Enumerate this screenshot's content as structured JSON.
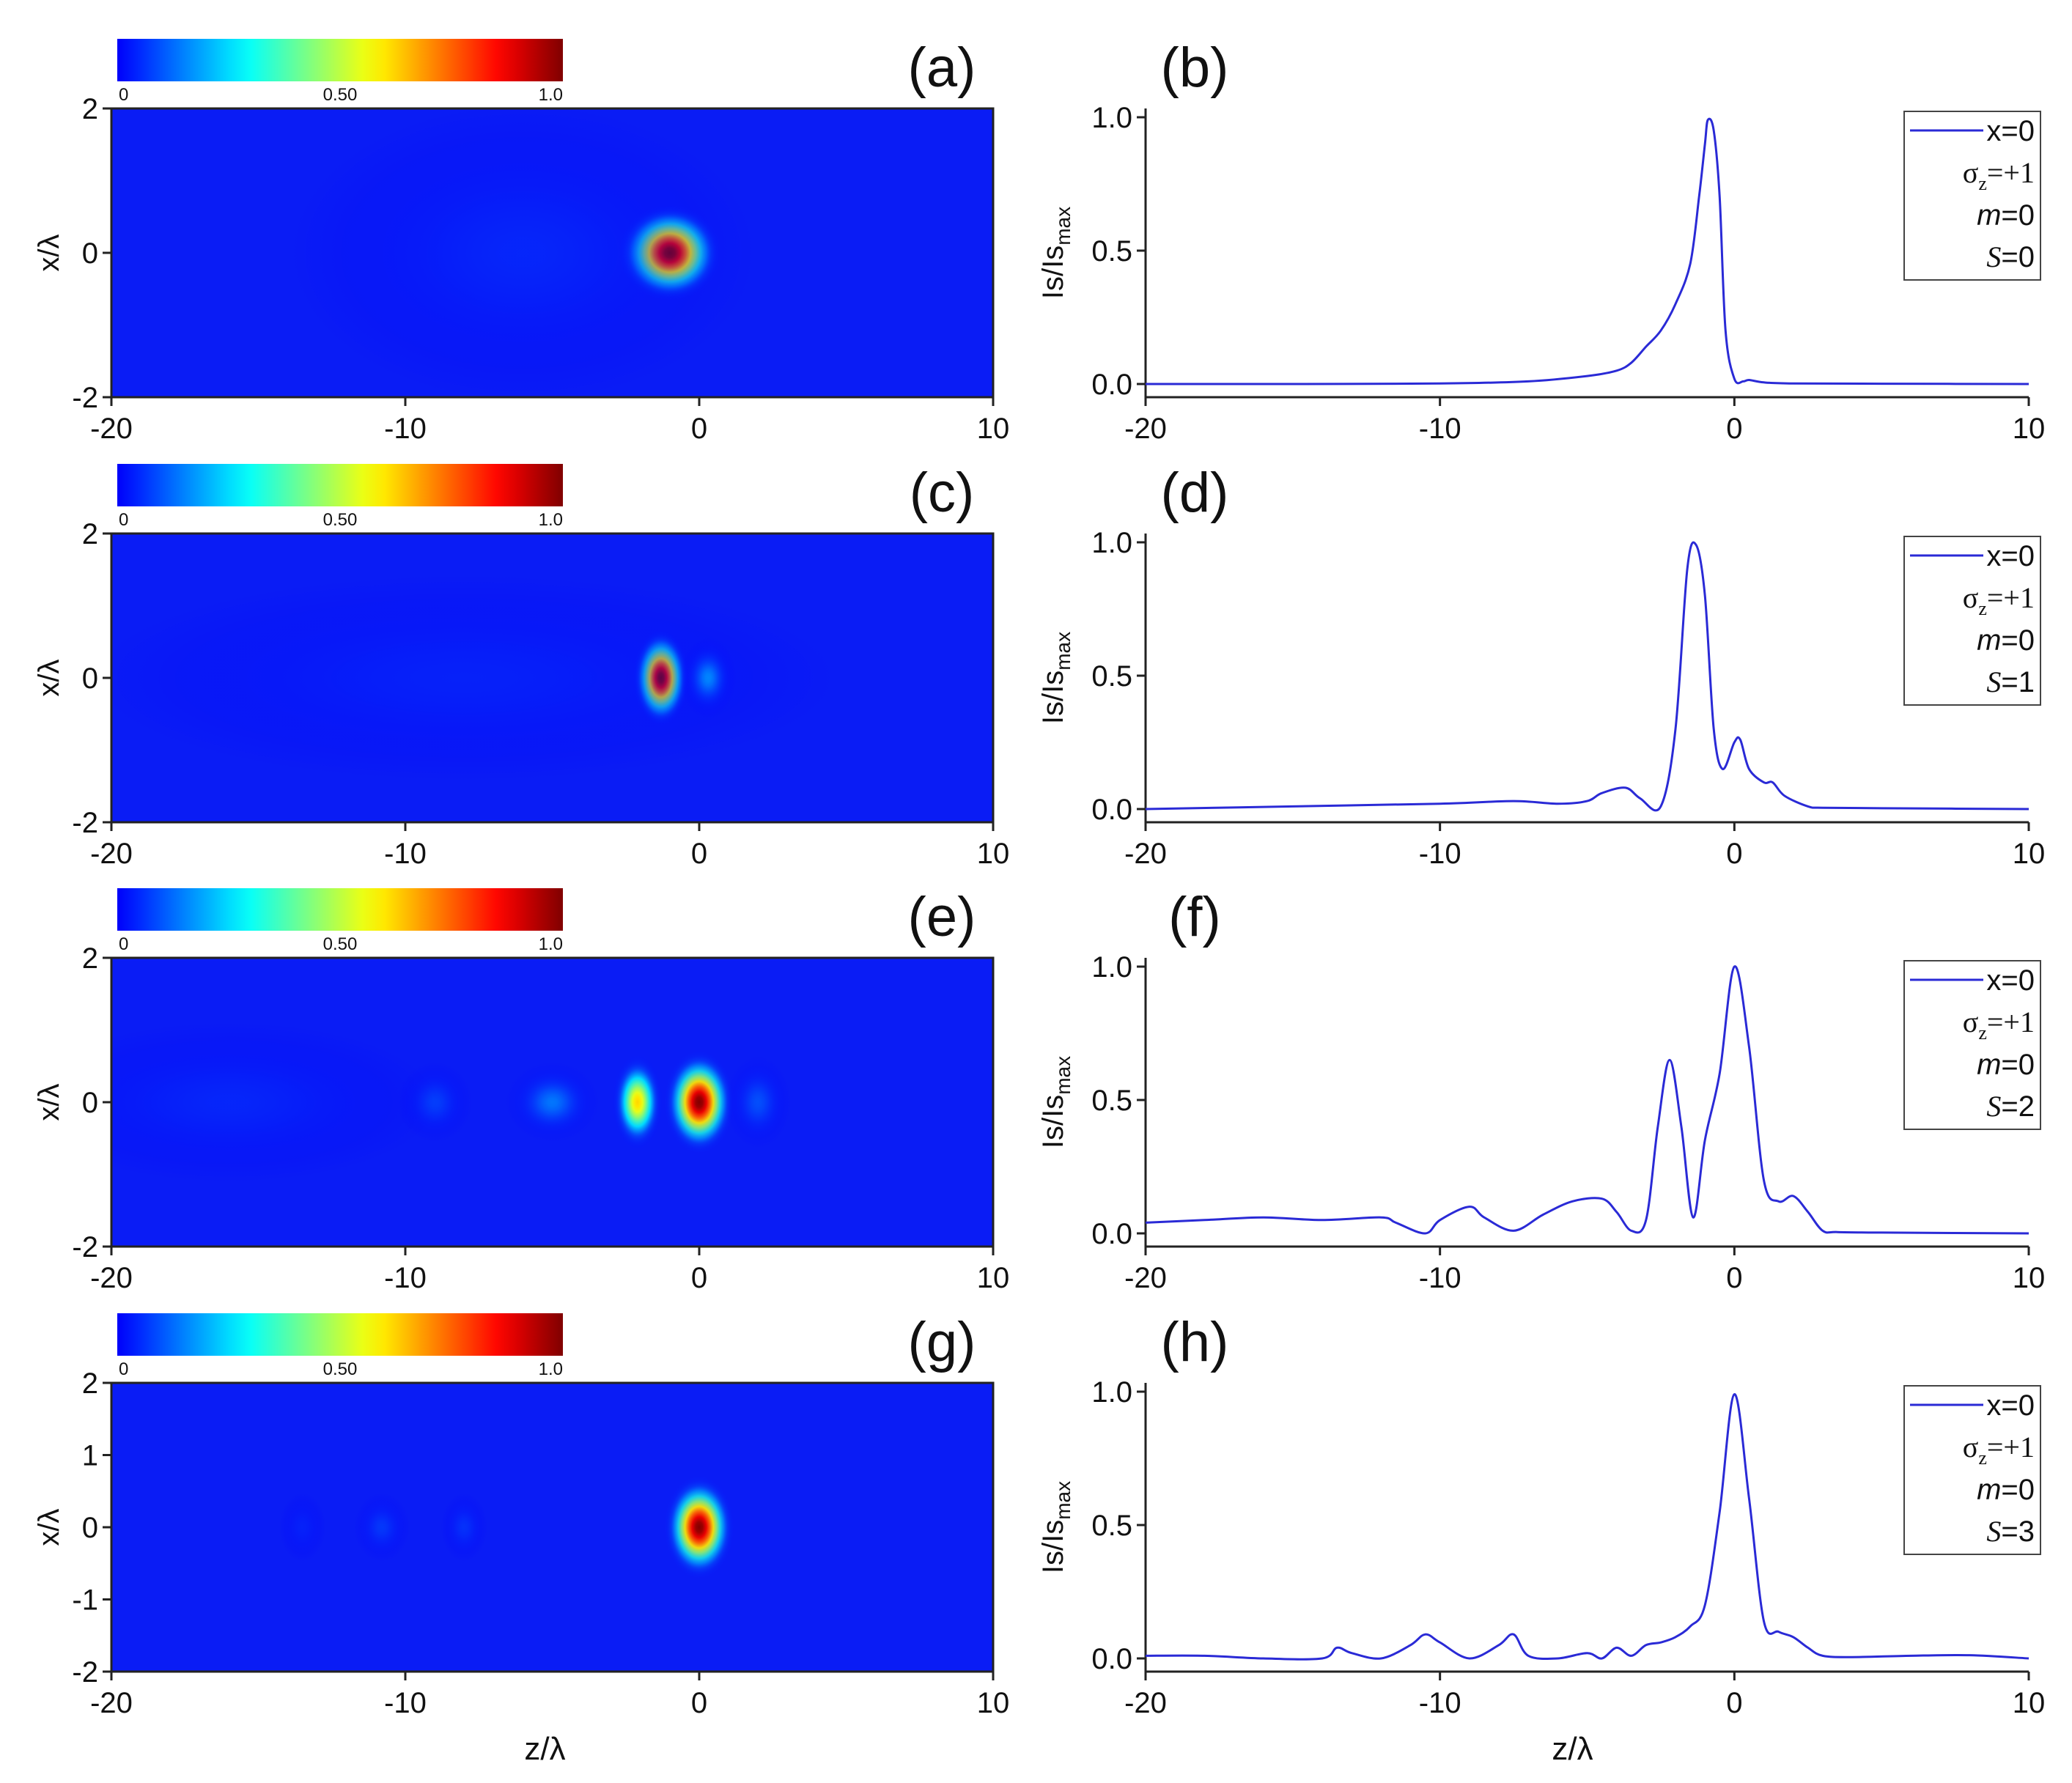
{
  "chart_data": [
    {
      "type": "heatmap",
      "panel_label": "(a)",
      "colorbar": {
        "min_label": "0",
        "mid_label": "0.50",
        "max_label": "1.0",
        "range": [
          0,
          1
        ]
      },
      "xlim": [
        -20,
        10
      ],
      "ylim": [
        -2,
        2
      ],
      "xticks": [
        "-20",
        "-10",
        "0",
        "10"
      ],
      "yticks": [
        "2",
        "0",
        "-2"
      ],
      "ylabel": "x/λ",
      "xlabel": "",
      "spots": [
        {
          "z": -1.0,
          "x": 0,
          "wz": 1.1,
          "wx": 0.42,
          "peak": 1.0
        },
        {
          "z": -6.0,
          "x": 0,
          "wz": 5.0,
          "wx": 1.3,
          "peak": 0.06
        }
      ]
    },
    {
      "type": "line",
      "panel_label": "(b)",
      "series": [
        {
          "name": "x=0",
          "x": [
            -20,
            -15,
            -10,
            -7,
            -5,
            -4,
            -3.5,
            -3,
            -2.5,
            -2,
            -1.5,
            -1.2,
            -1,
            -0.9,
            -0.7,
            -0.5,
            -0.3,
            0,
            0.3,
            0.5,
            1,
            2,
            5,
            10
          ],
          "y": [
            0,
            0,
            0.002,
            0.01,
            0.03,
            0.05,
            0.08,
            0.14,
            0.2,
            0.3,
            0.45,
            0.7,
            0.9,
            0.99,
            0.95,
            0.7,
            0.2,
            0.02,
            0.01,
            0.015,
            0.006,
            0.002,
            0.001,
            0
          ]
        }
      ],
      "xlim": [
        -20,
        10
      ],
      "ylim": [
        0,
        1.0
      ],
      "xticks": [
        "-20",
        "-10",
        "0",
        "10"
      ],
      "yticks": [
        "0.0",
        "0.5",
        "1.0"
      ],
      "ylabel": "Is/Is",
      "ylabel_sub": "max",
      "xlabel": "",
      "legend": {
        "line": "x=0",
        "sigma": "σ",
        "sigma_sub": "z",
        "sigma_val": "=+1",
        "m_sym": "m",
        "m_val": "=0",
        "s_sym": "S",
        "s_val": "=0"
      }
    },
    {
      "type": "heatmap",
      "panel_label": "(c)",
      "colorbar": {
        "min_label": "0",
        "mid_label": "0.50",
        "max_label": "1.0",
        "range": [
          0,
          1
        ]
      },
      "xlim": [
        -20,
        10
      ],
      "ylim": [
        -2,
        2
      ],
      "xticks": [
        "-20",
        "-10",
        "0",
        "10"
      ],
      "yticks": [
        "2",
        "0",
        "-2"
      ],
      "ylabel": "x/λ",
      "xlabel": "",
      "spots": [
        {
          "z": -1.3,
          "x": 0,
          "wz": 0.6,
          "wx": 0.42,
          "peak": 1.0
        },
        {
          "z": 0.3,
          "x": 0,
          "wz": 0.6,
          "wx": 0.35,
          "peak": 0.2
        },
        {
          "z": -8.0,
          "x": 0,
          "wz": 8.0,
          "wx": 0.9,
          "peak": 0.05
        }
      ]
    },
    {
      "type": "line",
      "panel_label": "(d)",
      "series": [
        {
          "name": "x=0",
          "x": [
            -20,
            -15,
            -10,
            -7.5,
            -6,
            -5,
            -4.5,
            -3.7,
            -3.2,
            -2.5,
            -2,
            -1.6,
            -1.3,
            -1,
            -0.7,
            -0.4,
            0,
            0.2,
            0.5,
            1,
            1.3,
            1.7,
            2.5,
            3,
            5,
            10
          ],
          "y": [
            0,
            0.01,
            0.02,
            0.03,
            0.02,
            0.03,
            0.06,
            0.08,
            0.04,
            0.01,
            0.3,
            0.9,
            0.99,
            0.8,
            0.3,
            0.15,
            0.25,
            0.26,
            0.15,
            0.1,
            0.1,
            0.05,
            0.01,
            0.005,
            0.003,
            0
          ]
        }
      ],
      "xlim": [
        -20,
        10
      ],
      "ylim": [
        0,
        1.0
      ],
      "xticks": [
        "-20",
        "-10",
        "0",
        "10"
      ],
      "yticks": [
        "0.0",
        "0.5",
        "1.0"
      ],
      "ylabel": "Is/Is",
      "ylabel_sub": "max",
      "xlabel": "",
      "legend": {
        "line": "x=0",
        "sigma": "σ",
        "sigma_sub": "z",
        "sigma_val": "=+1",
        "m_sym": "m",
        "m_val": "=0",
        "s_sym": "S",
        "s_val": "=1"
      }
    },
    {
      "type": "heatmap",
      "panel_label": "(e)",
      "colorbar": {
        "min_label": "0",
        "mid_label": "0.50",
        "max_label": "1.0",
        "range": [
          0,
          1
        ]
      },
      "xlim": [
        -20,
        10
      ],
      "ylim": [
        -2,
        2
      ],
      "xticks": [
        "-20",
        "-10",
        "0",
        "10"
      ],
      "yticks": [
        "2",
        "0",
        "-2"
      ],
      "ylabel": "x/λ",
      "xlabel": "",
      "spots": [
        {
          "z": 0.0,
          "x": 0,
          "wz": 0.75,
          "wx": 0.45,
          "peak": 1.0
        },
        {
          "z": -2.1,
          "x": 0,
          "wz": 0.55,
          "wx": 0.42,
          "peak": 0.62
        },
        {
          "z": -5.0,
          "x": 0,
          "wz": 1.0,
          "wx": 0.35,
          "peak": 0.16
        },
        {
          "z": -9.0,
          "x": 0,
          "wz": 0.8,
          "wx": 0.35,
          "peak": 0.1
        },
        {
          "z": -16.0,
          "x": 0,
          "wz": 4.5,
          "wx": 0.7,
          "peak": 0.06
        },
        {
          "z": 2.0,
          "x": 0,
          "wz": 0.7,
          "wx": 0.4,
          "peak": 0.12
        }
      ]
    },
    {
      "type": "line",
      "panel_label": "(f)",
      "series": [
        {
          "name": "x=0",
          "x": [
            -20,
            -18,
            -16,
            -14,
            -12,
            -11.5,
            -10.5,
            -10,
            -9,
            -8.5,
            -7.5,
            -6.5,
            -5.5,
            -4.5,
            -4,
            -3.5,
            -3,
            -2.6,
            -2.2,
            -1.8,
            -1.4,
            -1,
            -0.5,
            0,
            0.5,
            1,
            1.5,
            2,
            2.5,
            3,
            3.5,
            5,
            10
          ],
          "y": [
            0.04,
            0.05,
            0.06,
            0.05,
            0.06,
            0.04,
            0.0,
            0.05,
            0.1,
            0.06,
            0.01,
            0.07,
            0.12,
            0.13,
            0.08,
            0.01,
            0.05,
            0.4,
            0.65,
            0.4,
            0.06,
            0.35,
            0.6,
            1.0,
            0.7,
            0.2,
            0.12,
            0.14,
            0.08,
            0.01,
            0.005,
            0.003,
            0.0
          ]
        }
      ],
      "xlim": [
        -20,
        10
      ],
      "ylim": [
        0,
        1.0
      ],
      "xticks": [
        "-20",
        "-10",
        "0",
        "10"
      ],
      "yticks": [
        "0.0",
        "0.5",
        "1.0"
      ],
      "ylabel": "Is/Is",
      "ylabel_sub": "max",
      "xlabel": "",
      "legend": {
        "line": "x=0",
        "sigma": "σ",
        "sigma_sub": "z",
        "sigma_val": "=+1",
        "m_sym": "m",
        "m_val": "=0",
        "s_sym": "S",
        "s_val": "=2"
      }
    },
    {
      "type": "heatmap",
      "panel_label": "(g)",
      "colorbar": {
        "min_label": "0",
        "mid_label": "0.50",
        "max_label": "1.0",
        "range": [
          0,
          1
        ]
      },
      "xlim": [
        -20,
        10
      ],
      "ylim": [
        -2,
        2
      ],
      "xticks": [
        "-20",
        "-10",
        "0",
        "10"
      ],
      "yticks": [
        "2",
        "1",
        "0",
        "-1",
        "-2"
      ],
      "ylabel": "x/λ",
      "xlabel": "z/λ",
      "spots": [
        {
          "z": 0.0,
          "x": 0,
          "wz": 0.75,
          "wx": 0.45,
          "peak": 1.0
        },
        {
          "z": -8.0,
          "x": 0,
          "wz": 0.5,
          "wx": 0.3,
          "peak": 0.08
        },
        {
          "z": -10.8,
          "x": 0,
          "wz": 0.6,
          "wx": 0.3,
          "peak": 0.09
        },
        {
          "z": -13.5,
          "x": 0,
          "wz": 0.5,
          "wx": 0.3,
          "peak": 0.05
        }
      ]
    },
    {
      "type": "line",
      "panel_label": "(h)",
      "series": [
        {
          "name": "x=0",
          "x": [
            -20,
            -18,
            -16,
            -14,
            -13.5,
            -13,
            -12,
            -11,
            -10.5,
            -10,
            -9,
            -8,
            -7.5,
            -7,
            -6,
            -5,
            -4.5,
            -4,
            -3.5,
            -3,
            -2.5,
            -2,
            -1.5,
            -1,
            -0.5,
            0,
            0.5,
            1,
            1.5,
            2,
            2.5,
            3,
            4,
            6,
            8,
            10
          ],
          "y": [
            0.01,
            0.01,
            0.0,
            0.0,
            0.04,
            0.02,
            0.0,
            0.05,
            0.09,
            0.06,
            0.0,
            0.05,
            0.09,
            0.01,
            0.0,
            0.02,
            0.0,
            0.04,
            0.01,
            0.05,
            0.06,
            0.08,
            0.12,
            0.2,
            0.55,
            0.99,
            0.6,
            0.14,
            0.1,
            0.08,
            0.04,
            0.01,
            0.005,
            0.01,
            0.012,
            0.0
          ]
        }
      ],
      "xlim": [
        -20,
        10
      ],
      "ylim": [
        0,
        1.0
      ],
      "xticks": [
        "-20",
        "-10",
        "0",
        "10"
      ],
      "yticks": [
        "0.0",
        "0.5",
        "1.0"
      ],
      "ylabel": "Is/Is",
      "ylabel_sub": "max",
      "xlabel": "z/λ",
      "legend": {
        "line": "x=0",
        "sigma": "σ",
        "sigma_sub": "z",
        "sigma_val": "=+1",
        "m_sym": "m",
        "m_val": "=0",
        "s_sym": "S",
        "s_val": "=3"
      }
    }
  ],
  "colors": {
    "line": "#2a2ad6",
    "background": "#0a1cf5"
  }
}
